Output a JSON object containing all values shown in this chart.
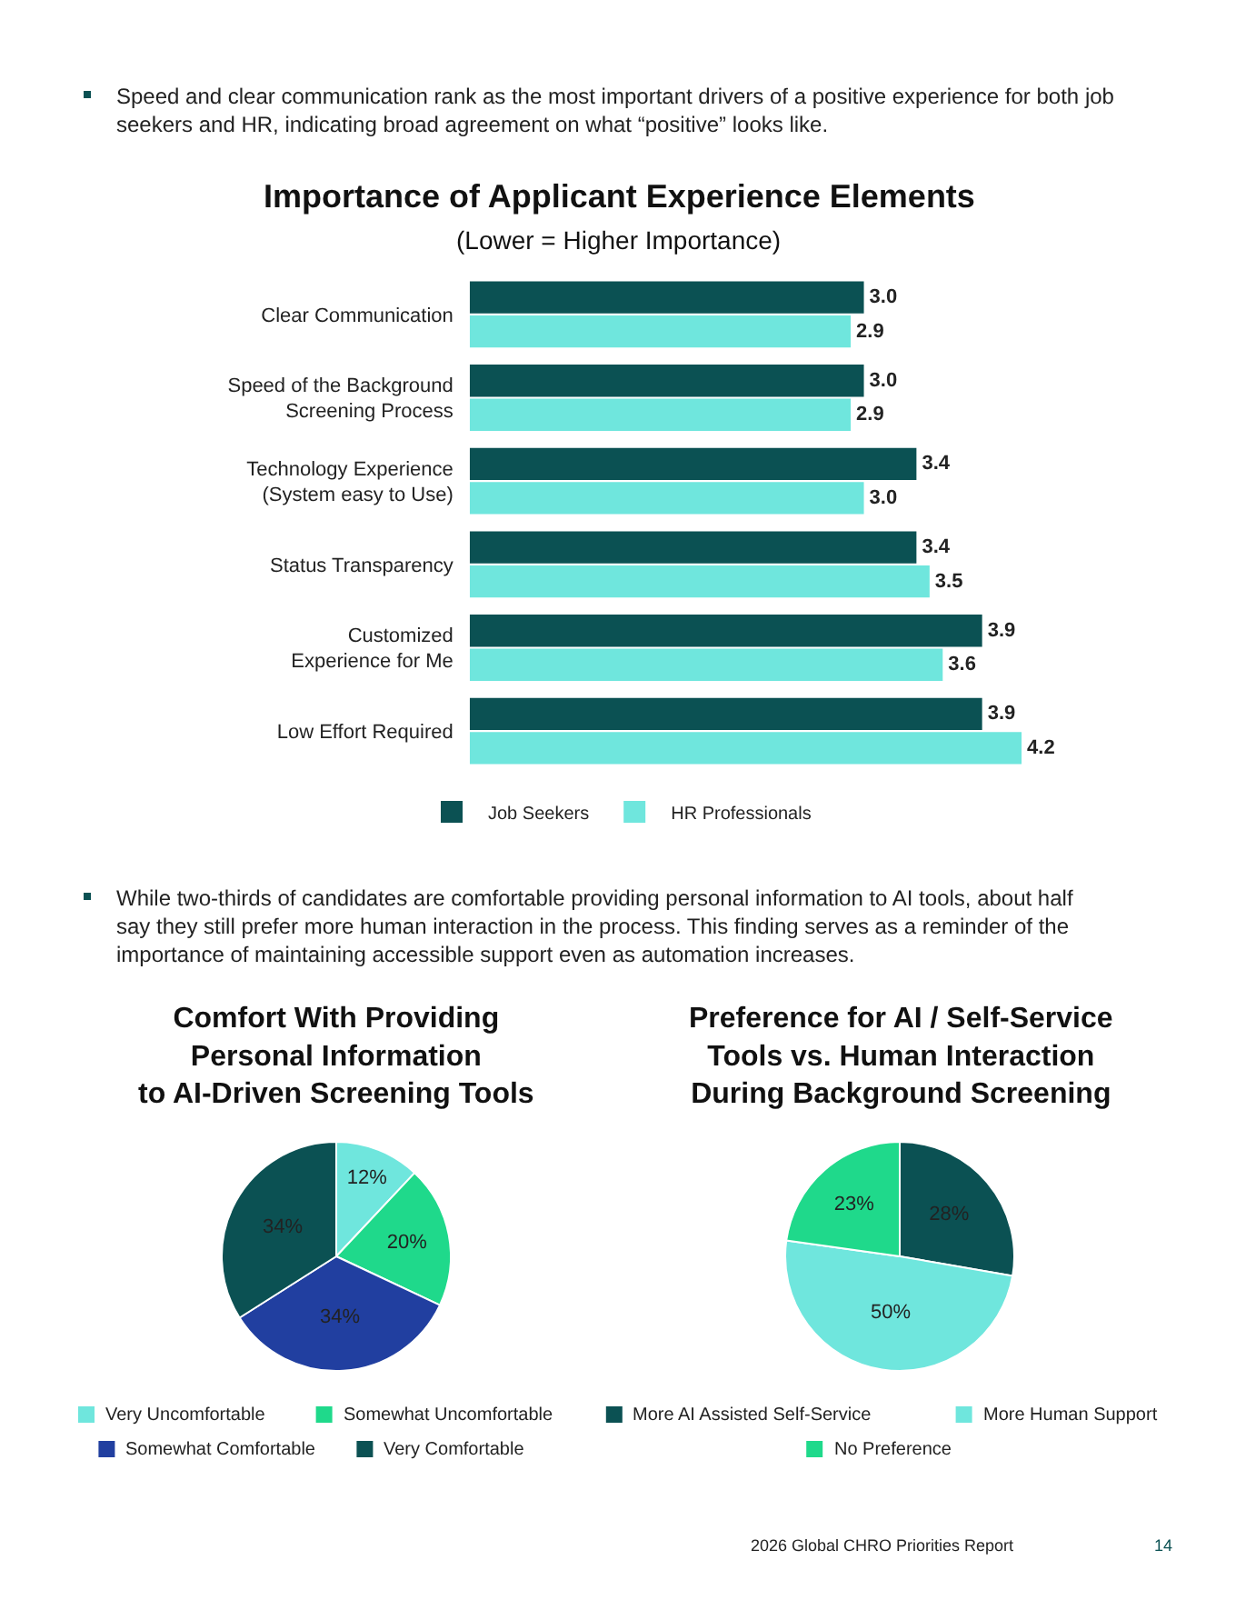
{
  "chart_data": [
    {
      "type": "bar",
      "orientation": "horizontal",
      "title": "Importance of Applicant Experience Elements",
      "subtitle": "(Lower = Higher Importance)",
      "categories": [
        "Clear Communication",
        "Speed of the Background\nScreening Process",
        "Technology Experience\n(System easy to Use)",
        "Status Transparency",
        "Customized\nExperience for Me",
        "Low Effort Required"
      ],
      "series": [
        {
          "name": "Job Seekers",
          "color": "#0b5153",
          "values": [
            3.0,
            3.0,
            3.4,
            3.4,
            3.9,
            3.9
          ],
          "value_labels": [
            "3.0",
            "3.0",
            "3.4",
            "3.4",
            "3.9",
            "3.9"
          ]
        },
        {
          "name": "HR Professionals",
          "color": "#6fe6dd",
          "values": [
            2.9,
            2.9,
            3.0,
            3.5,
            3.6,
            4.2
          ],
          "value_labels": [
            "2.9",
            "2.9",
            "3.0",
            "3.5",
            "3.6",
            "4.2"
          ]
        }
      ],
      "legend": "bottom",
      "annotations": [
        "Speed and clear communication rank as the most important drivers of a positive experience for both job seekers and HR, indicating broad agreement on what “positive” looks like."
      ]
    },
    {
      "type": "pie",
      "title": "Comfort With Providing\nPersonal Information\nto AI-Driven Screening Tools",
      "categories": [
        "Very Uncomfortable",
        "Somewhat Uncomfortable",
        "Somewhat Comfortable",
        "Very Comfortable"
      ],
      "values": [
        12,
        20,
        34,
        34
      ],
      "value_labels": [
        "12%",
        "20%",
        "34%",
        "34%"
      ],
      "colors": [
        "#6fe6dd",
        "#1fd98b",
        "#213fa0",
        "#0b5153"
      ],
      "legend": "bottom",
      "annotations": [
        "While two-thirds of candidates are comfortable providing personal information to AI tools, about half say they still prefer more human interaction in the process. This finding serves as a reminder of the importance of maintaining accessible support even as automation increases."
      ]
    },
    {
      "type": "pie",
      "title": "Preference for AI / Self-Service\nTools vs. Human Interaction\nDuring Background Screening",
      "categories": [
        "More AI Assisted Self-Service",
        "More Human Support",
        "No Preference"
      ],
      "values": [
        28,
        50,
        23
      ],
      "value_labels": [
        "28%",
        "50%",
        "23%"
      ],
      "colors": [
        "#0b5153",
        "#6fe6dd",
        "#1fd98b"
      ],
      "legend": "bottom",
      "annotations": [
        "2026 Global CHRO Priorities Report",
        "14"
      ]
    }
  ]
}
